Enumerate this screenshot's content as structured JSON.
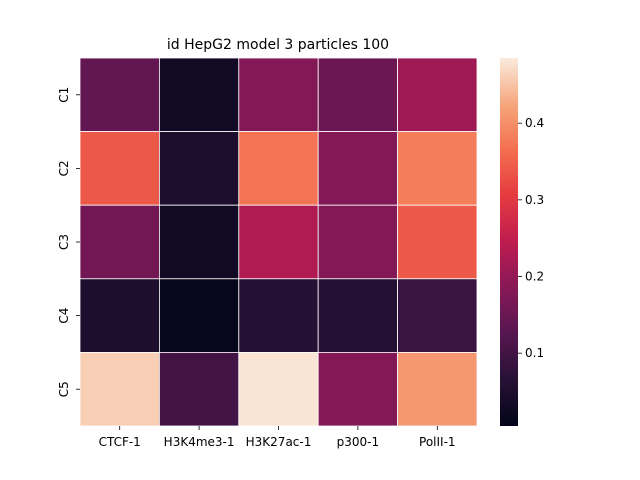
{
  "chart_data": {
    "type": "heatmap",
    "title": "id HepG2 model 3 particles 100",
    "xlabel": "",
    "ylabel": "",
    "x_categories": [
      "CTCF-1",
      "H3K4me3-1",
      "H3K27ac-1",
      "p300-1",
      "PolII-1"
    ],
    "y_categories": [
      "C1",
      "C2",
      "C3",
      "C4",
      "C5"
    ],
    "values": [
      [
        0.14,
        0.03,
        0.18,
        0.15,
        0.21
      ],
      [
        0.34,
        0.05,
        0.37,
        0.18,
        0.38
      ],
      [
        0.16,
        0.03,
        0.23,
        0.18,
        0.34
      ],
      [
        0.05,
        0.01,
        0.06,
        0.06,
        0.09
      ],
      [
        0.46,
        0.1,
        0.48,
        0.18,
        0.41
      ]
    ],
    "colorbar": {
      "min": 0.005,
      "max": 0.485,
      "ticks": [
        0.1,
        0.2,
        0.3,
        0.4
      ],
      "tick_labels": [
        "0.1",
        "0.2",
        "0.3",
        "0.4"
      ]
    },
    "colormap": "rocket",
    "grid_lines": true,
    "grid_line_color": "#ffffff"
  }
}
